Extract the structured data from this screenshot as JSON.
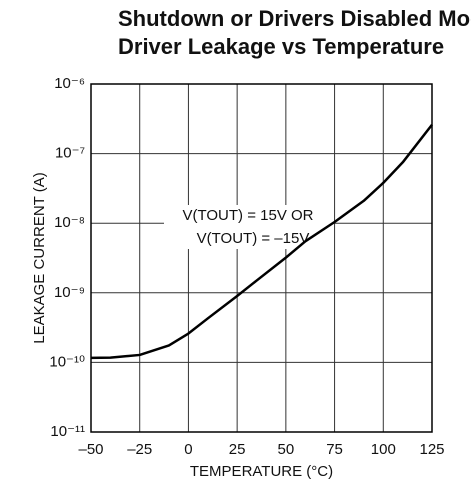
{
  "chart_data": {
    "type": "line",
    "title": [
      "Shutdown or Drivers Disabled Mode",
      "Driver Leakage vs Temperature"
    ],
    "xlabel": "TEMPERATURE (°C)",
    "ylabel": "LEAKAGE CURRENT (A)",
    "annotation": [
      "V(TOUT) = 15V OR",
      "V(TOUT) = –15V"
    ],
    "x": [
      -50,
      -40,
      -25,
      -10,
      0,
      10,
      25,
      35,
      50,
      60,
      75,
      90,
      100,
      110,
      125
    ],
    "series": [
      {
        "name": "Leakage",
        "color": "#000000",
        "values": [
          1.16e-10,
          1.17e-10,
          1.28e-10,
          1.75e-10,
          2.6e-10,
          4.3e-10,
          9e-10,
          1.5e-09,
          3.2e-09,
          5.5e-09,
          1.04e-08,
          2.1e-08,
          3.8e-08,
          7.5e-08,
          2.6e-07
        ]
      }
    ],
    "xlim": [
      -50,
      125
    ],
    "xticks": [
      {
        "value": -50,
        "label": "–50"
      },
      {
        "value": -25,
        "label": "–25"
      },
      0,
      25,
      50,
      75,
      100,
      125
    ],
    "ylim": [
      1e-11,
      1e-06
    ],
    "log_y": true,
    "yticks": [
      {
        "value": 1e-11,
        "label": "10⁻¹¹"
      },
      {
        "value": 1e-10,
        "label": "10⁻¹⁰"
      },
      {
        "value": 1e-09,
        "label": "10⁻⁹"
      },
      {
        "value": 1e-08,
        "label": "10⁻⁸"
      },
      {
        "value": 1e-07,
        "label": "10⁻⁷"
      },
      {
        "value": 1e-06,
        "label": "10⁻⁶"
      }
    ],
    "grid": true
  }
}
